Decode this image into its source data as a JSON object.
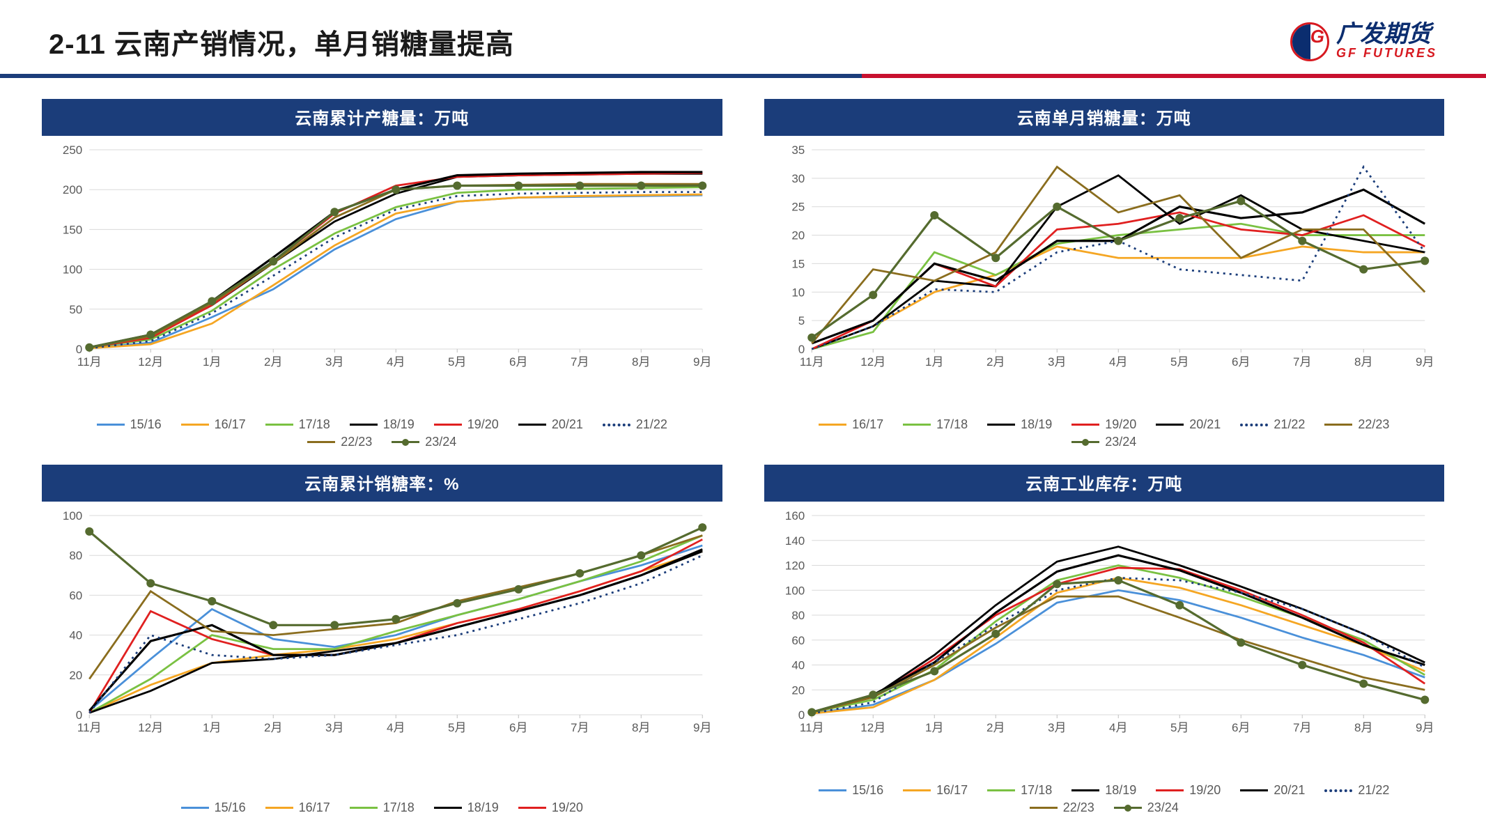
{
  "page": {
    "title": "2-11 云南产销情况，单月销糖量提高",
    "brand_cn": "广发期货",
    "brand_en": "GF FUTURES",
    "divider_left_color": "#1b3d7a",
    "divider_right_color": "#c8102e",
    "background_color": "#ffffff"
  },
  "months": [
    "11月",
    "12月",
    "1月",
    "2月",
    "3月",
    "4月",
    "5月",
    "6月",
    "7月",
    "8月",
    "9月"
  ],
  "palette": {
    "grid_color": "#d9d9d9",
    "axis_text_color": "#595959",
    "header_bg": "#1b3d7a"
  },
  "series_style": {
    "15/16": {
      "color": "#4a90d9",
      "dash": false,
      "marker": false
    },
    "16/17": {
      "color": "#f5a623",
      "dash": false,
      "marker": false
    },
    "17/18": {
      "color": "#7ac142",
      "dash": false,
      "marker": false
    },
    "18/19": {
      "color": "#000000",
      "dash": false,
      "marker": false
    },
    "19/20": {
      "color": "#e02020",
      "dash": false,
      "marker": false
    },
    "20/21": {
      "color": "#000000",
      "dash": false,
      "marker": false,
      "width": 3.2
    },
    "21/22": {
      "color": "#1b3d7a",
      "dash": true,
      "marker": false
    },
    "22/23": {
      "color": "#8a6d1e",
      "dash": false,
      "marker": false
    },
    "23/24": {
      "color": "#556b2f",
      "dash": false,
      "marker": true,
      "width": 3.2
    }
  },
  "charts": {
    "prod": {
      "title": "云南累计产糖量：万吨",
      "ylim": [
        0,
        250
      ],
      "ytick_step": 50,
      "legend": [
        "15/16",
        "16/17",
        "17/18",
        "18/19",
        "19/20",
        "20/21",
        "21/22",
        "22/23",
        "23/24"
      ],
      "data": {
        "15/16": [
          1,
          8,
          40,
          75,
          125,
          163,
          185,
          190,
          191,
          192,
          193
        ],
        "16/17": [
          1,
          6,
          32,
          80,
          130,
          170,
          185,
          190,
          192,
          193,
          194
        ],
        "17/18": [
          2,
          12,
          48,
          100,
          145,
          178,
          196,
          200,
          201,
          202,
          203
        ],
        "18/19": [
          2,
          15,
          55,
          108,
          160,
          195,
          216,
          218,
          219,
          220,
          220
        ],
        "19/20": [
          2,
          14,
          55,
          110,
          170,
          205,
          216,
          218,
          219,
          220,
          221
        ],
        "20/21": [
          2,
          18,
          60,
          115,
          172,
          200,
          218,
          220,
          221,
          222,
          222
        ],
        "21/22": [
          1,
          10,
          45,
          92,
          140,
          175,
          192,
          195,
          196,
          197,
          197
        ],
        "22/23": [
          2,
          16,
          58,
          108,
          165,
          200,
          205,
          206,
          207,
          207,
          207
        ],
        "23/24": [
          2,
          18,
          60,
          110,
          172,
          200,
          205,
          205,
          205,
          205,
          205
        ]
      }
    },
    "sales_m": {
      "title": "云南单月销糖量：万吨",
      "ylim": [
        0,
        35
      ],
      "ytick_step": 5,
      "legend": [
        "16/17",
        "17/18",
        "18/19",
        "19/20",
        "20/21",
        "21/22",
        "22/23",
        "23/24"
      ],
      "data": {
        "16/17": [
          0,
          4,
          10,
          13,
          18,
          16,
          16,
          16,
          18,
          17,
          17
        ],
        "17/18": [
          0,
          3,
          17,
          13,
          18.5,
          20,
          21,
          22,
          20,
          20,
          20
        ],
        "18/19": [
          0,
          4,
          12,
          11,
          25,
          30.5,
          22,
          27,
          21,
          19,
          17
        ],
        "19/20": [
          0,
          5,
          15,
          11,
          21,
          22,
          24,
          21,
          20,
          23.5,
          18
        ],
        "20/21": [
          1,
          5,
          15,
          12,
          19,
          19,
          25,
          23,
          24,
          28,
          22
        ],
        "21/22": [
          0,
          4,
          10.5,
          10,
          17,
          19,
          14,
          13,
          12,
          32,
          17
        ],
        "22/23": [
          1,
          14,
          12,
          17,
          32,
          24,
          27,
          16,
          21,
          21,
          10
        ],
        "23/24": [
          2,
          9.5,
          23.5,
          16,
          25,
          19,
          23,
          26,
          19,
          14,
          15.5
        ]
      }
    },
    "sales_rate": {
      "title": "云南累计销糖率：%",
      "ylim": [
        0,
        100
      ],
      "ytick_step": 20,
      "legend": [
        "15/16",
        "16/17",
        "17/18",
        "18/19",
        "19/20"
      ],
      "extra_series": [
        "20/21",
        "21/22",
        "22/23",
        "23/24"
      ],
      "data": {
        "15/16": [
          2,
          28,
          53,
          38,
          34,
          40,
          50,
          58,
          67,
          75,
          85
        ],
        "16/17": [
          1,
          15,
          26,
          30,
          33,
          38,
          46,
          53,
          62,
          72,
          82
        ],
        "17/18": [
          1,
          18,
          40,
          33,
          33,
          42,
          50,
          58,
          67,
          77,
          90
        ],
        "18/19": [
          1,
          12,
          26,
          28,
          32,
          36,
          44,
          52,
          60,
          70,
          82
        ],
        "19/20": [
          1,
          52,
          38,
          30,
          30,
          36,
          46,
          53,
          62,
          72,
          88
        ],
        "20/21": [
          2,
          37,
          45,
          30,
          30,
          36,
          44,
          52,
          60,
          70,
          83
        ],
        "21/22": [
          1,
          40,
          30,
          28,
          30,
          35,
          40,
          48,
          56,
          66,
          80
        ],
        "22/23": [
          18,
          62,
          42,
          40,
          43,
          46,
          57,
          64,
          71,
          80,
          90
        ],
        "23/24": [
          92,
          66,
          57,
          45,
          45,
          48,
          56,
          63,
          71,
          80,
          94
        ]
      }
    },
    "inventory": {
      "title": "云南工业库存：万吨",
      "ylim": [
        0,
        160
      ],
      "ytick_step": 20,
      "legend": [
        "15/16",
        "16/17",
        "17/18",
        "18/19",
        "19/20",
        "20/21",
        "21/22",
        "22/23",
        "23/24"
      ],
      "data": {
        "15/16": [
          1,
          8,
          28,
          57,
          90,
          100,
          92,
          78,
          62,
          48,
          30
        ],
        "16/17": [
          1,
          6,
          28,
          62,
          98,
          110,
          102,
          88,
          72,
          56,
          35
        ],
        "17/18": [
          2,
          12,
          36,
          75,
          108,
          120,
          110,
          95,
          78,
          60,
          32
        ],
        "18/19": [
          2,
          15,
          48,
          88,
          123,
          135,
          120,
          103,
          85,
          65,
          42
        ],
        "19/20": [
          2,
          14,
          45,
          80,
          105,
          118,
          117,
          100,
          80,
          58,
          25
        ],
        "20/21": [
          2,
          16,
          42,
          82,
          115,
          128,
          116,
          98,
          78,
          56,
          40
        ],
        "21/22": [
          1,
          10,
          42,
          72,
          100,
          110,
          108,
          98,
          85,
          65,
          38
        ],
        "22/23": [
          2,
          14,
          40,
          70,
          95,
          95,
          78,
          60,
          45,
          30,
          20
        ],
        "23/24": [
          2,
          16,
          35,
          65,
          105,
          108,
          88,
          58,
          40,
          25,
          12
        ]
      }
    }
  }
}
